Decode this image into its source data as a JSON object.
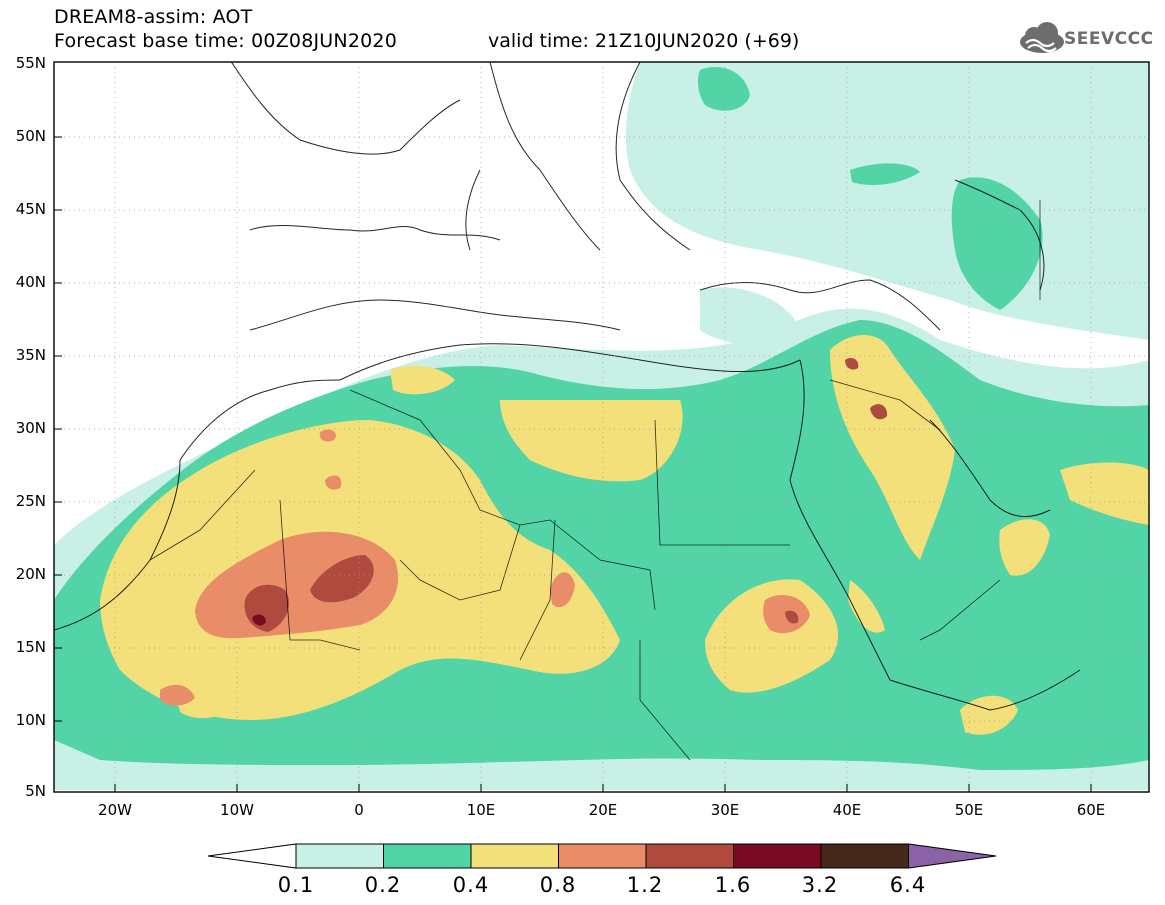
{
  "header": {
    "title_line1": "DREAM8-assim: AOT",
    "title_line2": "Forecast base time: 00Z08JUN2020",
    "valid_time": "valid time: 21Z10JUN2020 (+69)",
    "logo_text": "SEEVCCC",
    "logo_icon": "cloud-icon"
  },
  "map": {
    "lat_ticks": [
      "55N",
      "50N",
      "45N",
      "40N",
      "35N",
      "30N",
      "25N",
      "20N",
      "15N",
      "10N",
      "5N"
    ],
    "lon_ticks": [
      "20W",
      "10W",
      "0",
      "10E",
      "20E",
      "30E",
      "40E",
      "50E",
      "60E"
    ],
    "lat_range": [
      5,
      55
    ],
    "lon_range": [
      -25,
      65
    ]
  },
  "colorbar": {
    "labels": [
      "0.1",
      "0.2",
      "0.4",
      "0.8",
      "1.2",
      "1.6",
      "3.2",
      "6.4"
    ],
    "colors": [
      "#ffffff",
      "#c8f0e6",
      "#52d4a6",
      "#f4e07a",
      "#e98c68",
      "#b04a3e",
      "#7a0a24",
      "#45291a",
      "#8a62a5"
    ]
  }
}
